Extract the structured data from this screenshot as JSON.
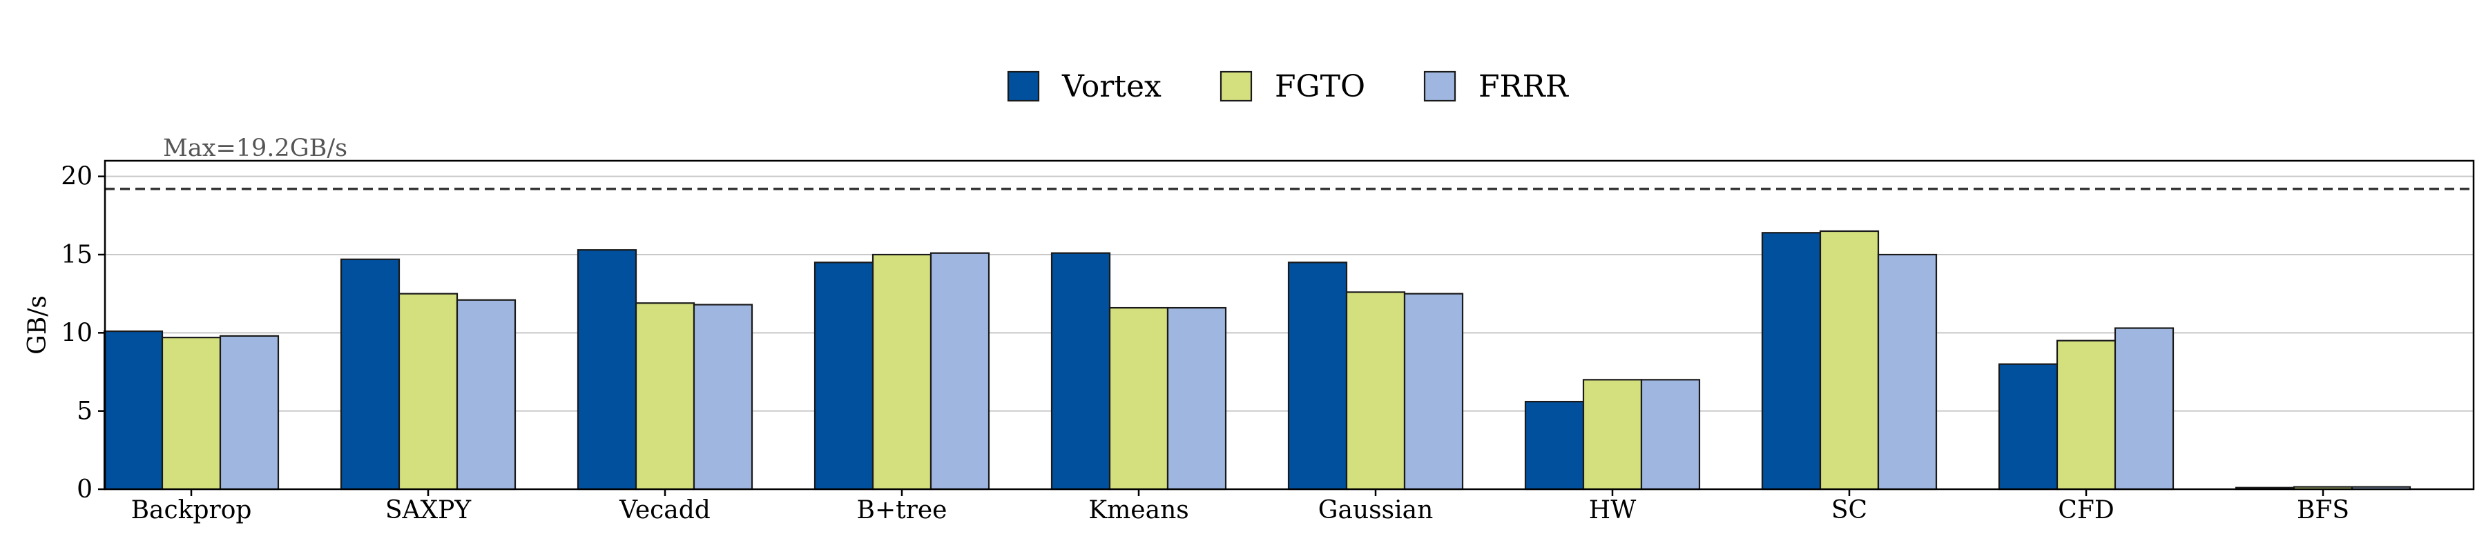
{
  "chart_data": {
    "type": "bar",
    "ylabel": "GB/s",
    "xlabel": "",
    "ylim": [
      0,
      21
    ],
    "yticks": [
      0,
      5,
      10,
      15,
      20
    ],
    "grid": "horizontal",
    "legend_position": "top-center",
    "categories": [
      "Backprop",
      "SAXPY",
      "Vecadd",
      "B+tree",
      "Kmeans",
      "Gaussian",
      "HW",
      "SC",
      "CFD",
      "BFS"
    ],
    "series": [
      {
        "name": "Vortex",
        "color": "#00509E",
        "values": [
          10.1,
          14.7,
          15.3,
          14.5,
          15.1,
          14.5,
          5.6,
          16.4,
          8.0,
          0.1
        ]
      },
      {
        "name": "FGTO",
        "color": "#D4DF7E",
        "values": [
          9.7,
          12.5,
          11.9,
          15.0,
          11.6,
          12.6,
          7.0,
          16.5,
          9.5,
          0.15
        ]
      },
      {
        "name": "FRRR",
        "color": "#9FB7E0",
        "values": [
          9.8,
          12.1,
          11.8,
          15.1,
          11.6,
          12.5,
          7.0,
          15.0,
          10.3,
          0.15
        ]
      }
    ],
    "reference_line": {
      "value": 19.2,
      "label": "Max=19.2GB/s",
      "style": "dashed"
    }
  }
}
